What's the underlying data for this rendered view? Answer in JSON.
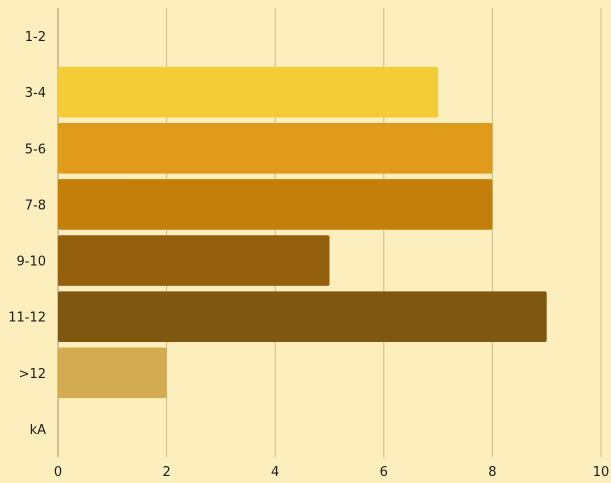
{
  "chart_data": {
    "type": "bar",
    "orientation": "horizontal",
    "categories": [
      "1-2",
      "3-4",
      "5-6",
      "7-8",
      "9-10",
      "11-12",
      ">12",
      "kA"
    ],
    "values": [
      0,
      7,
      8,
      8,
      5,
      9,
      2,
      0
    ],
    "bar_colors": [
      "#f4cc35",
      "#f4cc35",
      "#e09a1c",
      "#c37f09",
      "#94600d",
      "#7e5710",
      "#d3ac52",
      "#d3ac52"
    ],
    "xlim": [
      0,
      10
    ],
    "xticks": [
      0,
      2,
      4,
      6,
      8,
      10
    ],
    "grid": true,
    "legend": "none",
    "title": "",
    "xlabel": "",
    "ylabel": ""
  }
}
